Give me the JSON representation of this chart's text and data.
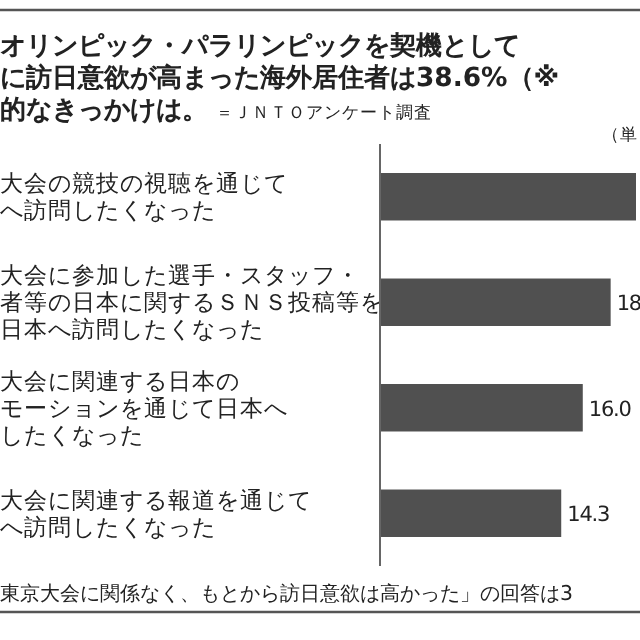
{
  "chart_data": {
    "type": "bar",
    "orientation": "horizontal",
    "title": "オリンピック・パラリンピックを契機としてに訪日意欲が高まった海外居住者は38.6%（※的なきっかけは。",
    "subtitle": "＝ＪＮＴＯアンケート調査",
    "categories": [
      "大会の競技の視聴を通じてへ訪問したくなった",
      "大会に参加した選手・スタッフ・者等の日本に関するＳＮＳ投稿等を日本へ訪問したくなった",
      "大会に関連する日本のモーションを通じて日本へしたくなった",
      "大会に関連する報道を通じてへ訪問したくなった"
    ],
    "values": [
      20.2,
      18.2,
      16.0,
      14.3
    ],
    "value_labels": [
      null,
      "18",
      "16.0",
      "14.3"
    ],
    "color": "#505050",
    "annotations": [
      "（単",
      "東京大会に関係なく、もとから訪日意欲は高かった」の回答は3"
    ]
  }
}
